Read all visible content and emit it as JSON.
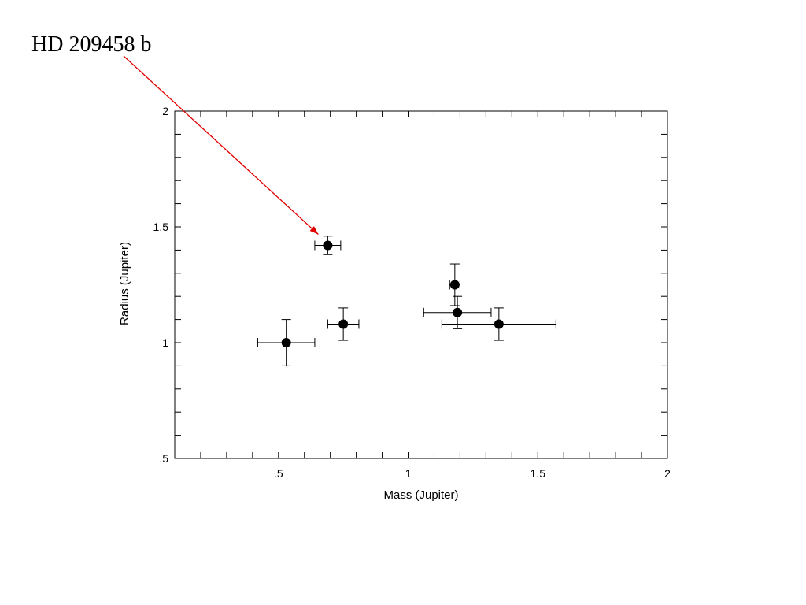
{
  "chart_data": {
    "type": "scatter",
    "title": "",
    "xlabel": "Mass (Jupiter)",
    "ylabel": "Radius (Jupiter)",
    "xlim": [
      0.1,
      2.0
    ],
    "ylim": [
      0.5,
      2.0
    ],
    "x_ticks": [
      0.5,
      1,
      1.5,
      2
    ],
    "x_tick_labels": [
      ".5",
      "1",
      "1.5",
      "2"
    ],
    "y_ticks": [
      0.5,
      1,
      1.5,
      2
    ],
    "y_tick_labels": [
      ".5",
      "1",
      "1.5",
      "2"
    ],
    "grid": false,
    "points": [
      {
        "x": 0.53,
        "y": 1.0,
        "xerr": 0.11,
        "yerr": 0.1
      },
      {
        "x": 0.69,
        "y": 1.42,
        "xerr": 0.05,
        "yerr": 0.04
      },
      {
        "x": 0.75,
        "y": 1.08,
        "xerr": 0.06,
        "yerr": 0.07
      },
      {
        "x": 1.18,
        "y": 1.25,
        "xerr": 0.02,
        "yerr": 0.09
      },
      {
        "x": 1.19,
        "y": 1.13,
        "xerr": 0.13,
        "yerr": 0.07
      },
      {
        "x": 1.35,
        "y": 1.08,
        "xerr": 0.22,
        "yerr": 0.07
      }
    ],
    "annotations": [
      {
        "text": "HD 209458 b",
        "point_index": 1,
        "arrow_color": "#e00000"
      }
    ]
  }
}
